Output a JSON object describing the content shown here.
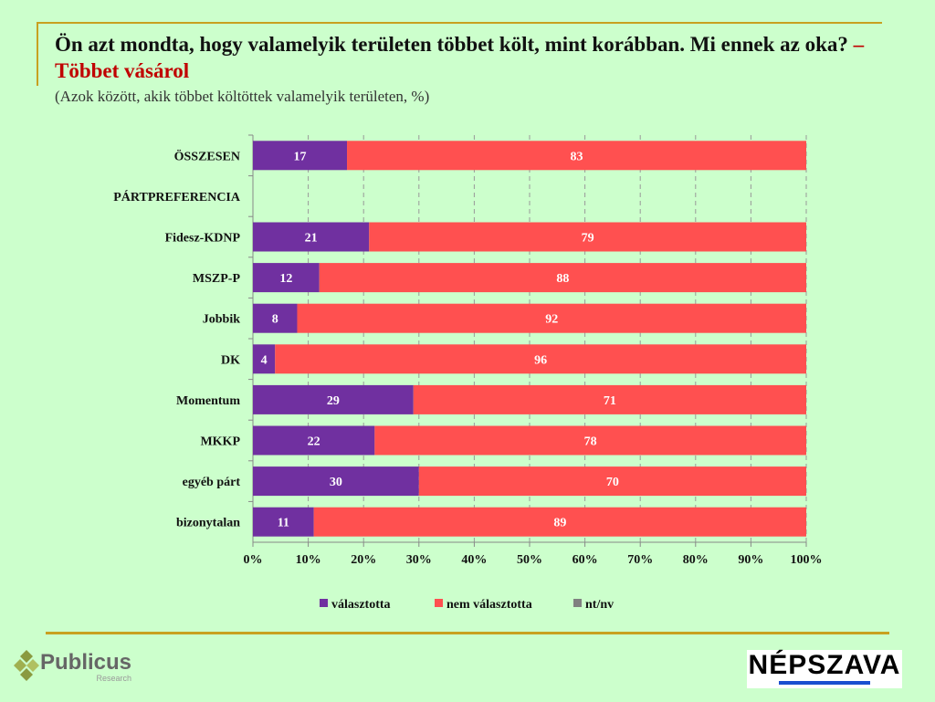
{
  "header": {
    "title_main": "Ön azt mondta, hogy valamelyik területen többet költ, mint korábban. Mi ennek az oka?",
    "title_highlight": " – Többet vásárol",
    "subtitle": "(Azok között, akik többet költöttek valamelyik területen, %)"
  },
  "chart_data": {
    "type": "bar",
    "orientation": "horizontal",
    "stacked": true,
    "categories": [
      "ÖSSZESEN",
      "PÁRTPREFERENCIA",
      "Fidesz-KDNP",
      "MSZP-P",
      "Jobbik",
      "DK",
      "Momentum",
      "MKKP",
      "egyéb párt",
      "bizonytalan"
    ],
    "series": [
      {
        "name": "választotta",
        "color": "#7030A0",
        "values": [
          17,
          null,
          21,
          12,
          8,
          4,
          29,
          22,
          30,
          11
        ]
      },
      {
        "name": "nem választotta",
        "color": "#FF5050",
        "values": [
          83,
          null,
          79,
          88,
          92,
          96,
          71,
          78,
          70,
          89
        ]
      },
      {
        "name": "nt/nv",
        "color": "#808080",
        "values": [
          0,
          null,
          0,
          0,
          0,
          0,
          0,
          0,
          0,
          0
        ]
      }
    ],
    "xlim": [
      0,
      100
    ],
    "xticks": [
      "0%",
      "10%",
      "20%",
      "30%",
      "40%",
      "50%",
      "60%",
      "70%",
      "80%",
      "90%",
      "100%"
    ],
    "grid": true,
    "legend": "bottom"
  },
  "footer": {
    "logo_left": "Publicus",
    "logo_left_sub": "Research",
    "logo_right": "NÉPSZAVA"
  }
}
